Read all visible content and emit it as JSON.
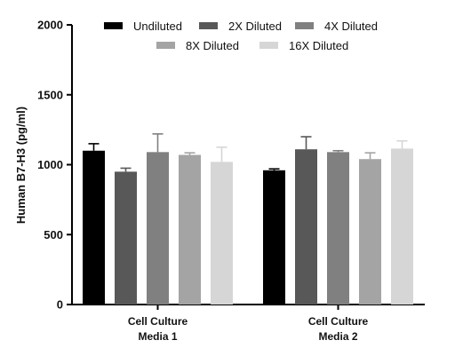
{
  "chart_data": {
    "type": "bar",
    "title": "",
    "xlabel": "",
    "ylabel": "Human B7-H3 (pg/ml)",
    "ylim": [
      0,
      2000
    ],
    "yticks": [
      0,
      500,
      1000,
      1500,
      2000
    ],
    "categories": [
      {
        "line1": "Cell  Culture",
        "line2": "Media 1"
      },
      {
        "line1": "Cell  Culture",
        "line2": "Media 2"
      }
    ],
    "series": [
      {
        "name": "Undiluted",
        "color": "#000000",
        "values": [
          1100,
          960
        ],
        "errors": [
          50,
          10
        ]
      },
      {
        "name": "2X Diluted",
        "color": "#585858",
        "values": [
          950,
          1110
        ],
        "errors": [
          25,
          90
        ]
      },
      {
        "name": "4X Diluted",
        "color": "#808080",
        "values": [
          1090,
          1090
        ],
        "errors": [
          130,
          10
        ]
      },
      {
        "name": "8X Diluted",
        "color": "#a4a4a4",
        "values": [
          1070,
          1040
        ],
        "errors": [
          15,
          45
        ]
      },
      {
        "name": "16X Diluted",
        "color": "#d6d6d6",
        "values": [
          1020,
          1115
        ],
        "errors": [
          105,
          55
        ]
      }
    ],
    "grid": false,
    "legend_position": "top"
  }
}
